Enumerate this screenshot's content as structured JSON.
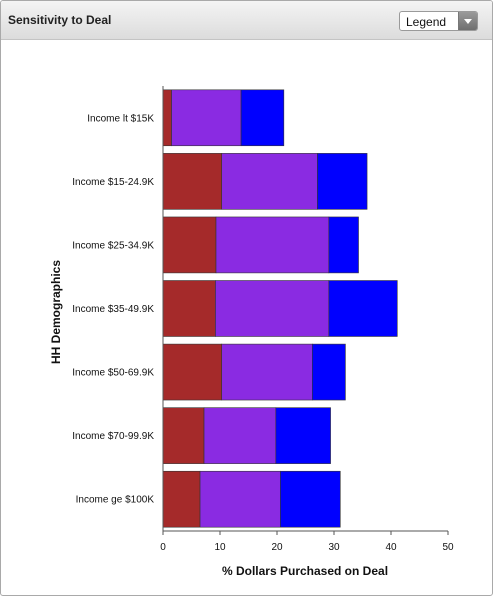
{
  "header": {
    "title": "Sensitivity to Deal",
    "legend_label": "Legend"
  },
  "chart_data": {
    "type": "bar",
    "orientation": "horizontal",
    "stacked": true,
    "xlabel": "% Dollars Purchased on Deal",
    "ylabel": "HH Demographics",
    "xlim": [
      0,
      50
    ],
    "xticks": [
      0,
      10,
      20,
      30,
      40,
      50
    ],
    "categories": [
      "Income lt $15K",
      "Income $15-24.9K",
      "Income $25-34.9K",
      "Income $35-49.9K",
      "Income $50-69.9K",
      "Income $70-99.9K",
      "Income ge $100K"
    ],
    "colors": [
      "#a52a2a",
      "#8a2be2",
      "#0000ff"
    ],
    "series": [
      {
        "values": [
          1.5,
          10.3,
          9.3,
          9.2,
          10.3,
          7.2,
          6.5
        ]
      },
      {
        "values": [
          12.2,
          16.8,
          19.8,
          19.9,
          15.9,
          12.6,
          14.1
        ]
      },
      {
        "values": [
          7.5,
          8.7,
          5.2,
          12.0,
          5.8,
          9.6,
          10.5
        ]
      }
    ],
    "legend": "dropdown",
    "grid": false
  }
}
